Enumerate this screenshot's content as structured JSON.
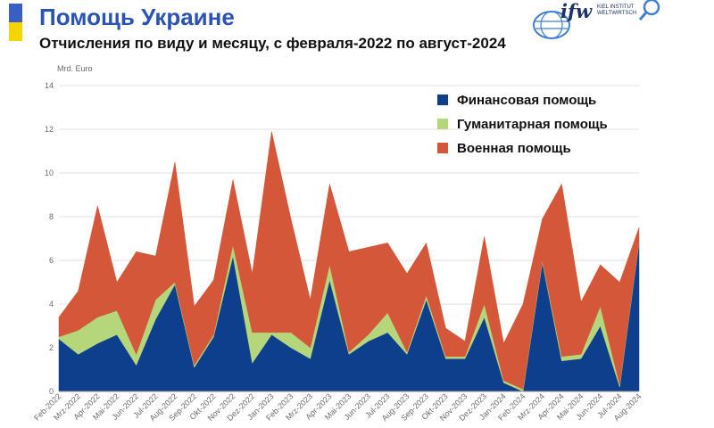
{
  "header": {
    "title": "Помощь Украине",
    "subtitle": "Отчисления по виду и месяцу, с февраля-2022 по август-2024",
    "flag_colors": {
      "top": "#3a5fc4",
      "bottom": "#f5d400"
    },
    "title_color": "#2a53b5"
  },
  "logo": {
    "brand": "ifw",
    "line1": "KIEL INSTITUT",
    "line2": "WELTWIRTSCH",
    "icon": "magnifier-icon",
    "globe": "globe-icon",
    "color": "#1e3264",
    "accent": "#3f7fd4"
  },
  "chart_data": {
    "type": "area",
    "stacked": true,
    "unit_label": "Mrd. Euro",
    "ylim": [
      0,
      14
    ],
    "yticks": [
      0,
      2,
      4,
      6,
      8,
      10,
      12,
      14
    ],
    "grid": "horizontal",
    "legend_position": "top-right",
    "categories": [
      "Feb-2022",
      "Mrz-2022",
      "Apr-2022",
      "Mai-2022",
      "Jun-2022",
      "Jul-2022",
      "Aug-2022",
      "Sep-2022",
      "Okt-2022",
      "Nov-2022",
      "Dez-2022",
      "Jan-2023",
      "Feb-2023",
      "Mrz-2023",
      "Apr-2023",
      "Mai-2023",
      "Jun-2023",
      "Jul-2023",
      "Aug-2023",
      "Sep-2023",
      "Okt-2023",
      "Nov-2023",
      "Dez-2023",
      "Jan-2024",
      "Feb-2024",
      "Mrz-2024",
      "Apr-2024",
      "Mai-2024",
      "Jun-2024",
      "Jul-2024",
      "Aug-2024"
    ],
    "series": [
      {
        "name": "Финансовая помощь",
        "color": "#0e3f8c",
        "values": [
          2.4,
          1.7,
          2.2,
          2.6,
          1.2,
          3.3,
          4.9,
          1.1,
          2.5,
          6.2,
          1.3,
          2.6,
          2.0,
          1.5,
          5.1,
          1.7,
          2.3,
          2.7,
          1.7,
          4.2,
          1.5,
          1.5,
          3.4,
          0.4,
          0.0,
          5.9,
          1.4,
          1.5,
          3.0,
          0.2,
          6.8
        ]
      },
      {
        "name": "Гуманитарная помощь",
        "color": "#b5d67a",
        "values": [
          0.1,
          1.1,
          1.2,
          1.1,
          0.5,
          0.9,
          0.1,
          0.1,
          0.1,
          0.5,
          1.4,
          0.1,
          0.7,
          0.5,
          0.7,
          0.1,
          0.3,
          0.9,
          0.1,
          0.2,
          0.1,
          0.1,
          0.6,
          0.1,
          0.1,
          0.1,
          0.2,
          0.2,
          0.9,
          0.1,
          0.1
        ]
      },
      {
        "name": "Военная помощь",
        "color": "#d4573a",
        "values": [
          0.9,
          1.8,
          5.1,
          1.3,
          4.7,
          2.0,
          5.5,
          2.7,
          2.5,
          3.0,
          2.7,
          9.2,
          5.2,
          2.2,
          3.7,
          4.6,
          4.0,
          3.2,
          3.6,
          2.4,
          1.3,
          0.7,
          3.1,
          1.7,
          3.9,
          1.9,
          7.9,
          2.4,
          1.9,
          4.7,
          0.6
        ]
      }
    ]
  }
}
